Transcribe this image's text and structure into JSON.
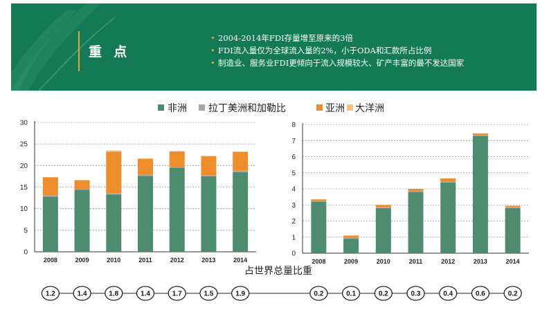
{
  "header": {
    "title": "重 点",
    "bullets": [
      "2004-2014年FDI存量增至原来的3倍",
      "FDI流入量仅为全球流入量的2%，小于ODA和汇款所占比例",
      "制造业、服务业FDI更倾向于流入规模较大、矿产丰富的最不发达国家"
    ]
  },
  "colors": {
    "banner": "#137a55",
    "africa": "#4e8c72",
    "latam": "#a6a6a6",
    "asia": "#ef8d2b",
    "oceania": "#f5c27e"
  },
  "legend": [
    {
      "label": "非洲",
      "color_key": "africa"
    },
    {
      "label": "拉丁美洲和加勒比",
      "color_key": "latam"
    },
    {
      "label": "亚洲",
      "color_key": "asia"
    },
    {
      "label": "大洋洲",
      "color_key": "oceania"
    }
  ],
  "share_label": "占世界总量比重",
  "chart_data": [
    {
      "type": "bar",
      "stacked": true,
      "categories": [
        "2008",
        "2009",
        "2010",
        "2011",
        "2012",
        "2013",
        "2014"
      ],
      "ylim": [
        0,
        30
      ],
      "yticks": [
        0,
        5,
        10,
        15,
        20,
        25,
        30
      ],
      "series": [
        {
          "name": "非洲",
          "color_key": "africa",
          "values": [
            12.8,
            14.4,
            13.3,
            17.6,
            19.5,
            17.5,
            18.5
          ]
        },
        {
          "name": "拉丁美洲和加勒比",
          "color_key": "latam",
          "values": [
            0.3,
            0.2,
            0.3,
            0.3,
            0.2,
            0.2,
            0.3
          ]
        },
        {
          "name": "亚洲",
          "color_key": "asia",
          "values": [
            4.2,
            2.0,
            9.6,
            3.6,
            3.6,
            4.5,
            4.4
          ]
        },
        {
          "name": "大洋洲",
          "color_key": "oceania",
          "values": [
            0.0,
            0.0,
            0.3,
            0.2,
            0.0,
            0.0,
            0.0
          ]
        }
      ],
      "share_of_world": [
        "1.2",
        "1.4",
        "1.8",
        "1.4",
        "1.7",
        "1.5",
        "1.9"
      ]
    },
    {
      "type": "bar",
      "stacked": true,
      "categories": [
        "2008",
        "2009",
        "2010",
        "2011",
        "2012",
        "2013",
        "2014"
      ],
      "ylim": [
        0,
        8
      ],
      "yticks": [
        0,
        1,
        2,
        3,
        4,
        5,
        6,
        7,
        8
      ],
      "series": [
        {
          "name": "非洲",
          "color_key": "africa",
          "values": [
            3.2,
            0.9,
            2.8,
            3.8,
            4.4,
            7.3,
            2.8
          ]
        },
        {
          "name": "拉丁美洲和加勒比",
          "color_key": "latam",
          "values": [
            0.05,
            0.05,
            0.05,
            0.05,
            0.05,
            0.05,
            0.05
          ]
        },
        {
          "name": "亚洲",
          "color_key": "asia",
          "values": [
            0.1,
            0.15,
            0.15,
            0.15,
            0.2,
            0.1,
            0.1
          ]
        },
        {
          "name": "大洋洲",
          "color_key": "oceania",
          "values": [
            0.0,
            0.0,
            0.0,
            0.0,
            0.0,
            0.0,
            0.0
          ]
        }
      ],
      "share_of_world": [
        "0.2",
        "0.1",
        "0.2",
        "0.3",
        "0.4",
        "0.6",
        "0.2"
      ]
    }
  ]
}
